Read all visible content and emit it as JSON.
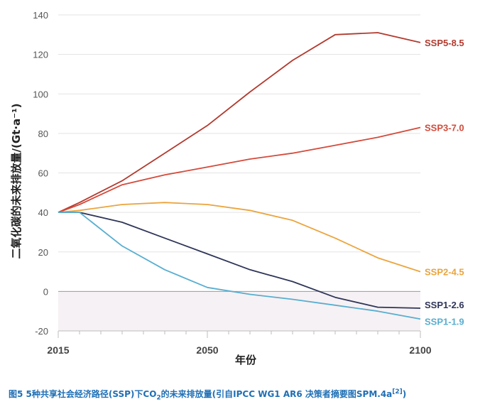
{
  "chart_data": {
    "type": "line",
    "ylabel": "二氧化碳的未来排放量/(Gt·a⁻¹)",
    "xlabel": "年份",
    "xlim": [
      2015,
      2100
    ],
    "ylim": [
      -20,
      140
    ],
    "x_ticks": [
      "2015",
      "2050",
      "2100"
    ],
    "y_ticks": [
      "140",
      "120",
      "100",
      "80",
      "60",
      "40",
      "20",
      "0",
      "-20"
    ],
    "grid": "horizontal",
    "series": [
      {
        "name": "SSP5-8.5",
        "color": "#b23a2e",
        "x": [
          2015,
          2020,
          2030,
          2040,
          2050,
          2060,
          2070,
          2080,
          2090,
          2100
        ],
        "y": [
          40,
          45,
          56,
          70,
          84,
          101,
          117,
          130,
          131,
          126
        ]
      },
      {
        "name": "SSP3-7.0",
        "color": "#d44a3a",
        "x": [
          2015,
          2020,
          2030,
          2040,
          2050,
          2060,
          2070,
          2080,
          2090,
          2100
        ],
        "y": [
          40,
          44,
          54,
          59,
          63,
          67,
          70,
          74,
          78,
          83
        ]
      },
      {
        "name": "SSP2-4.5",
        "color": "#eba43c",
        "x": [
          2015,
          2020,
          2030,
          2040,
          2050,
          2060,
          2070,
          2080,
          2090,
          2100
        ],
        "y": [
          40,
          41,
          44,
          45,
          44,
          41,
          36,
          27,
          17,
          10
        ]
      },
      {
        "name": "SSP1-2.6",
        "color": "#2f3558",
        "x": [
          2015,
          2020,
          2030,
          2040,
          2050,
          2060,
          2070,
          2080,
          2090,
          2100
        ],
        "y": [
          40,
          40,
          35,
          27,
          19,
          11,
          5,
          -3,
          -8,
          -8.5
        ]
      },
      {
        "name": "SSP1-1.9",
        "color": "#58aed0",
        "x": [
          2015,
          2020,
          2030,
          2040,
          2050,
          2060,
          2070,
          2080,
          2090,
          2100
        ],
        "y": [
          40,
          40,
          23,
          11,
          2,
          -1.5,
          -4,
          -7,
          -10,
          -14
        ]
      }
    ]
  },
  "caption": {
    "main": "图5 5种共享社会经济路径(SSP)下CO",
    "sub": "2",
    "rest": "的未来排放量(引自IPCC WG1 AR6 决策者摘要图SPM.4a",
    "sup": "[2]",
    "end": ")"
  }
}
